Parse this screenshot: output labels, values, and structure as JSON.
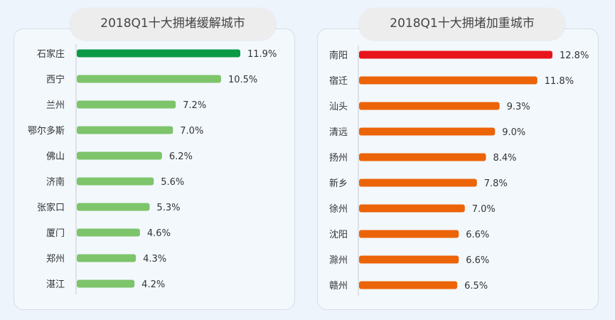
{
  "chart_data": [
    {
      "type": "bar",
      "orientation": "horizontal",
      "title": "2018Q1十大拥堵缓解城市",
      "categories": [
        "石家庄",
        "西宁",
        "兰州",
        "鄂尔多斯",
        "佛山",
        "济南",
        "张家口",
        "厦门",
        "郑州",
        "湛江"
      ],
      "values": [
        11.9,
        10.5,
        7.2,
        7.0,
        6.2,
        5.6,
        5.3,
        4.6,
        4.3,
        4.2
      ],
      "value_labels": [
        "11.9%",
        "10.5%",
        "7.2%",
        "7.0%",
        "6.2%",
        "5.6%",
        "5.3%",
        "4.6%",
        "4.3%",
        "4.2%"
      ],
      "unit": "%",
      "colors": [
        "#0a9a46",
        "#7dc46a",
        "#7dc46a",
        "#7dc46a",
        "#7dc46a",
        "#7dc46a",
        "#7dc46a",
        "#7dc46a",
        "#7dc46a",
        "#7dc46a"
      ],
      "xlim": [
        0,
        11.9
      ],
      "grid": false
    },
    {
      "type": "bar",
      "orientation": "horizontal",
      "title": "2018Q1十大拥堵加重城市",
      "categories": [
        "南阳",
        "宿迁",
        "汕头",
        "清远",
        "扬州",
        "新乡",
        "徐州",
        "沈阳",
        "滁州",
        "赣州"
      ],
      "values": [
        12.8,
        11.8,
        9.3,
        9.0,
        8.4,
        7.8,
        7.0,
        6.6,
        6.6,
        6.5
      ],
      "value_labels": [
        "12.8%",
        "11.8%",
        "9.3%",
        "9.0%",
        "8.4%",
        "7.8%",
        "7.0%",
        "6.6%",
        "6.6%",
        "6.5%"
      ],
      "unit": "%",
      "colors": [
        "#e8141c",
        "#ec6408",
        "#ec6408",
        "#ec6408",
        "#ec6408",
        "#ec6408",
        "#ec6408",
        "#ec6408",
        "#ec6408",
        "#ec6408"
      ],
      "xlim": [
        0,
        12.8
      ],
      "grid": false
    }
  ]
}
